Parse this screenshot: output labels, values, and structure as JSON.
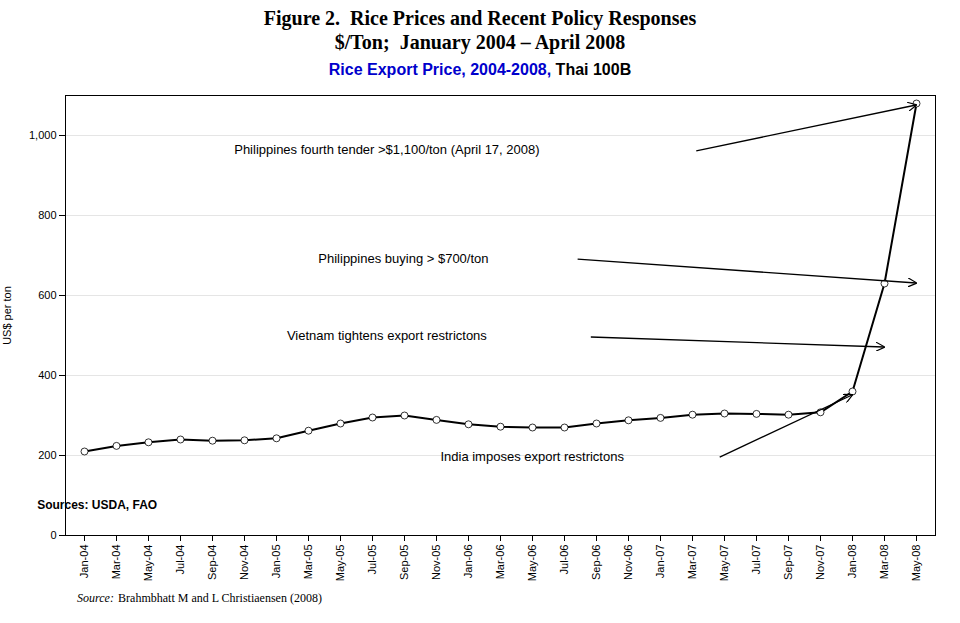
{
  "chart_data": {
    "type": "line",
    "title": [
      "Figure 2.  Rice Prices and Recent Policy Responses",
      "$/Ton;  January 2004 – April 2008"
    ],
    "subtitle": [
      {
        "text": "Rice Export Price, 2004-2008,",
        "color": "#0000CC"
      },
      {
        "text": " Thai 100B",
        "color": "#000000"
      }
    ],
    "ylabel": "US$ per ton",
    "categories": [
      "Jan-04",
      "Mar-04",
      "May-04",
      "Jul-04",
      "Sep-04",
      "Nov-04",
      "Jan-05",
      "Mar-05",
      "May-05",
      "Jul-05",
      "Sep-05",
      "Nov-05",
      "Jan-06",
      "Mar-06",
      "May-06",
      "Jul-06",
      "Sep-06",
      "Nov-06",
      "Jan-07",
      "Mar-07",
      "May-07",
      "Jul-07",
      "Sep-07",
      "Nov-07",
      "Jan-08",
      "Mar-08",
      "May-08"
    ],
    "values": [
      210,
      224,
      233,
      240,
      237,
      238,
      243,
      262,
      280,
      295,
      300,
      289,
      278,
      272,
      270,
      270,
      280,
      288,
      294,
      302,
      305,
      304,
      302,
      308,
      360,
      630,
      1080
    ],
    "color": "#000000",
    "marker": "circle",
    "ylim": [
      0,
      1100
    ],
    "yticks": [
      0,
      200,
      400,
      600,
      800,
      1000
    ],
    "grid": true,
    "annotations": [
      {
        "text": "Philippines fourth tender >$1,100/ton (April 17, 2008)",
        "x": "May-08",
        "y": 1075
      },
      {
        "text": "Philippines buying > $700/ton",
        "x": "May-08",
        "y": 630
      },
      {
        "text": "Vietnam tightens export restrictons",
        "x": "Mar-08",
        "y": 470
      },
      {
        "text": "India imposes export restrictons",
        "x": "Jan-08",
        "y": 350
      },
      {
        "text": "Sources: USDA, FAO"
      }
    ],
    "caption": [
      {
        "text": "Source:",
        "style": "italic"
      },
      {
        "text": "Brahmbhatt M and L Christiaensen (2008)"
      }
    ]
  }
}
